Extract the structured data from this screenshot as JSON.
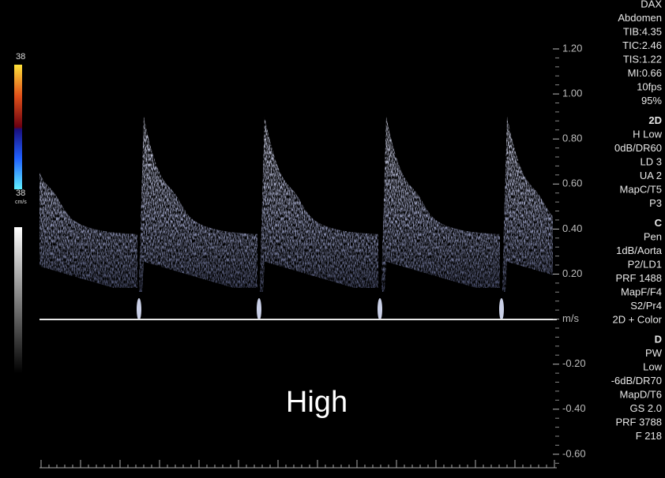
{
  "color_bar": {
    "top": "38",
    "bottom": "38",
    "unit": "cm/s"
  },
  "scale": {
    "labels": [
      "1.20",
      "1.00",
      "0.80",
      "0.60",
      "0.40",
      "0.20",
      "m/s",
      "-0.20",
      "-0.40",
      "-0.60"
    ]
  },
  "parameters": [
    {
      "items": [
        "DAX",
        "Abdomen",
        "TIB:4.35",
        "TIC:2.46",
        "TIS:1.22",
        "MI:0.66",
        "10fps",
        "95%"
      ]
    },
    {
      "header": "2D",
      "items": [
        "H Low",
        "0dB/DR60",
        "LD 3",
        "UA 2",
        "MapC/T5",
        "P3"
      ]
    },
    {
      "header": "C",
      "items": [
        "Pen",
        "1dB/Aorta",
        "P2/LD1",
        "PRF 1488",
        "MapF/F4",
        "S2/Pr4",
        "2D + Color"
      ]
    },
    {
      "header": "D",
      "items": [
        "PW",
        "Low",
        "-6dB/DR70",
        "MapD/T6",
        "GS 2.0",
        "PRF 3788",
        "F 218"
      ]
    }
  ],
  "overlay": "High"
}
